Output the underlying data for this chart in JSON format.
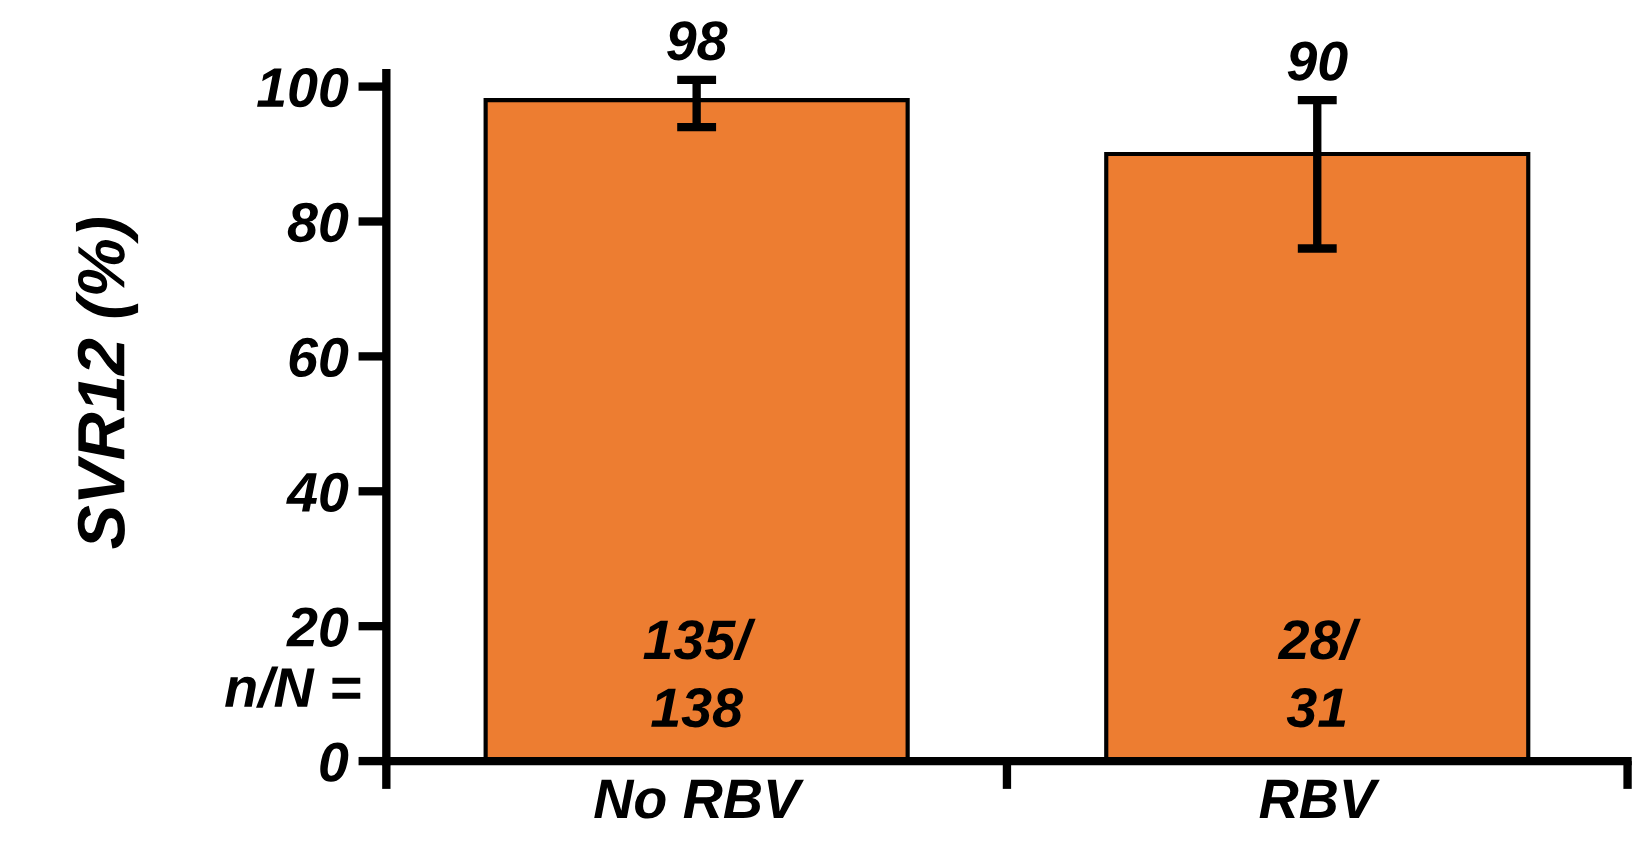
{
  "chart_data": {
    "type": "bar",
    "ylabel": "SVR12 (%)",
    "categories": [
      "No RBV",
      "RBV"
    ],
    "series": [
      {
        "color": "#ed7d31",
        "values": [
          98,
          90
        ],
        "errors": [
          [
            94,
            101
          ],
          [
            76,
            98
          ]
        ],
        "value_labels": [
          "98",
          "90"
        ]
      }
    ],
    "ylim": [
      0,
      102
    ],
    "yticks": [
      0,
      20,
      40,
      60,
      80,
      100
    ],
    "grid": false,
    "legend": false,
    "annotations": [
      "135/\n138",
      "28/\n31",
      "n/N ="
    ]
  }
}
